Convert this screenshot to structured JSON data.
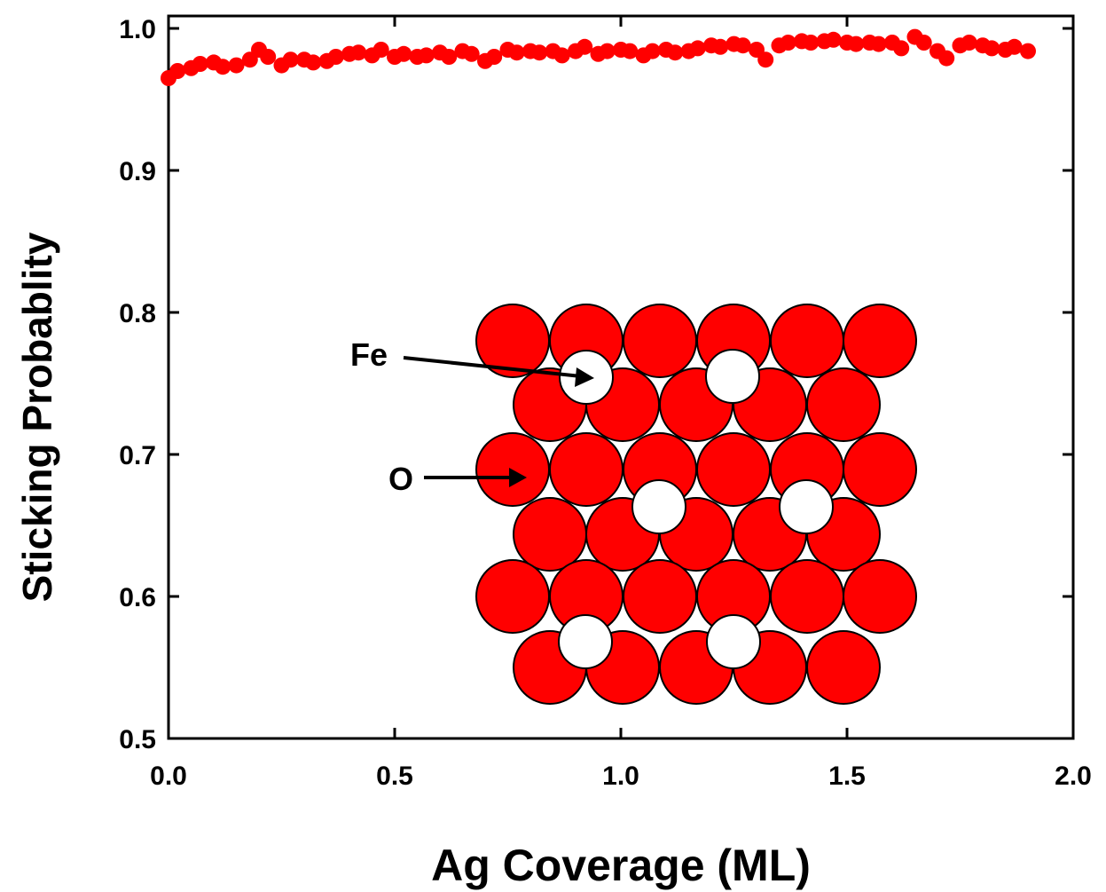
{
  "chart_data": {
    "type": "scatter",
    "xlabel": "Ag Coverage (ML)",
    "ylabel": "Sticking Probablity",
    "xlim": [
      0,
      2
    ],
    "ylim": [
      0.5,
      1
    ],
    "xticks": [
      {
        "value": 0,
        "label": "0.0"
      },
      0.5,
      {
        "value": 1,
        "label": "1.0"
      },
      1.5,
      {
        "value": 2,
        "label": "2.0"
      }
    ],
    "yticks": [
      0.5,
      0.6,
      0.7,
      0.8,
      0.9,
      {
        "value": 1,
        "label": "1.0"
      }
    ],
    "annotations": [
      {
        "text": "Fe"
      },
      {
        "text": "O"
      }
    ],
    "series": [
      {
        "color": "#ff0000",
        "x": [
          0,
          0.02,
          0.05,
          0.07,
          0.1,
          0.12,
          0.15,
          0.18,
          0.2,
          0.22,
          0.25,
          0.27,
          0.3,
          0.32,
          0.35,
          0.37,
          0.4,
          0.42,
          0.45,
          0.47,
          0.5,
          0.52,
          0.55,
          0.57,
          0.6,
          0.62,
          0.65,
          0.67,
          0.7,
          0.72,
          0.75,
          0.77,
          0.8,
          0.82,
          0.85,
          0.87,
          0.9,
          0.92,
          0.95,
          0.97,
          1.0,
          1.02,
          1.05,
          1.07,
          1.1,
          1.12,
          1.15,
          1.17,
          1.2,
          1.22,
          1.25,
          1.27,
          1.3,
          1.32,
          1.35,
          1.37,
          1.4,
          1.42,
          1.45,
          1.47,
          1.5,
          1.52,
          1.55,
          1.57,
          1.6,
          1.62,
          1.65,
          1.67,
          1.7,
          1.72,
          1.75,
          1.77,
          1.8,
          1.82,
          1.85,
          1.87,
          1.9
        ],
        "values": [
          0.965,
          0.97,
          0.972,
          0.975,
          0.976,
          0.973,
          0.974,
          0.978,
          0.985,
          0.98,
          0.974,
          0.978,
          0.978,
          0.976,
          0.977,
          0.98,
          0.982,
          0.983,
          0.981,
          0.985,
          0.98,
          0.982,
          0.98,
          0.981,
          0.983,
          0.98,
          0.984,
          0.982,
          0.977,
          0.98,
          0.985,
          0.983,
          0.984,
          0.983,
          0.984,
          0.981,
          0.984,
          0.987,
          0.982,
          0.984,
          0.985,
          0.984,
          0.981,
          0.984,
          0.985,
          0.983,
          0.984,
          0.986,
          0.988,
          0.987,
          0.989,
          0.988,
          0.985,
          0.978,
          0.988,
          0.99,
          0.991,
          0.99,
          0.991,
          0.992,
          0.99,
          0.989,
          0.99,
          0.989,
          0.99,
          0.986,
          0.994,
          0.99,
          0.984,
          0.979,
          0.988,
          0.99,
          0.988,
          0.986,
          0.985,
          0.987,
          0.984
        ]
      }
    ]
  }
}
